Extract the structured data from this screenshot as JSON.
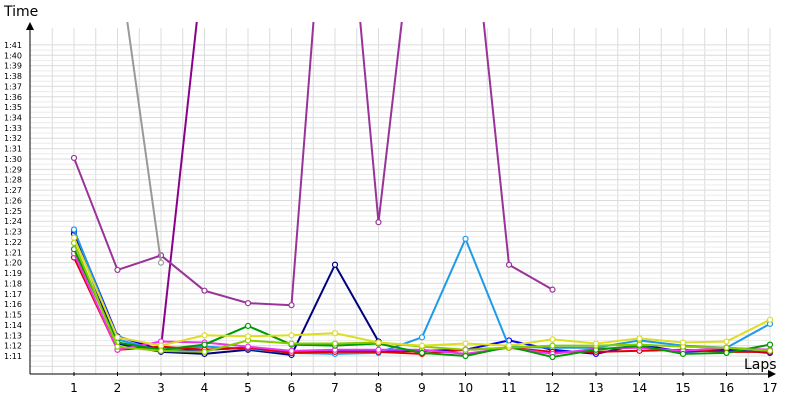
{
  "chart_data": {
    "type": "line",
    "xlabel": "Laps",
    "ylabel": "Time",
    "x": [
      1,
      2,
      3,
      4,
      5,
      6,
      7,
      8,
      9,
      10,
      11,
      12,
      13,
      14,
      15,
      16,
      17
    ],
    "y_tick_labels": [
      "1:11",
      "1:12",
      "1:13",
      "1:14",
      "1:15",
      "1:16",
      "1:17",
      "1:18",
      "1:19",
      "1:20",
      "1:21",
      "1:22",
      "1:23",
      "1:24",
      "1:25",
      "1:26",
      "1:27",
      "1:28",
      "1:29",
      "1:30",
      "1:31",
      "1:32",
      "1:33",
      "1:34",
      "1:35",
      "1:36",
      "1:37",
      "1:38",
      "1:39",
      "1:40",
      "1:41"
    ],
    "ylim": [
      70,
      101.5
    ],
    "grid": true,
    "series": [
      {
        "color": "#000080",
        "values": [
          82.8,
          72.2,
          71.4,
          71.2,
          71.6,
          71.1,
          79.8,
          72.4,
          null,
          null,
          null,
          null,
          null,
          null,
          null,
          null,
          null
        ]
      },
      {
        "color": "#8B008B",
        "values": [
          null,
          null,
          71.8,
          110,
          null,
          null,
          null,
          null,
          null,
          null,
          null,
          null,
          null,
          null,
          null,
          null,
          null
        ]
      },
      {
        "color": "#993399",
        "values": [
          90.1,
          79.3,
          80.7,
          77.3,
          76.1,
          75.9,
          130,
          83.9,
          120,
          120,
          79.8,
          77.4,
          null,
          null,
          null,
          null,
          null
        ]
      },
      {
        "color": "#999999",
        "values": [
          null,
          110,
          80,
          null,
          null,
          null,
          null,
          null,
          null,
          null,
          null,
          null,
          null,
          null,
          null,
          null,
          null
        ]
      },
      {
        "color": "#0000FF",
        "values": [
          83.1,
          72.9,
          71.6,
          71.6,
          71.8,
          71.4,
          71.5,
          71.5,
          71.5,
          71.6,
          72.5,
          71.6,
          71.2,
          72.1,
          71.4,
          71.6,
          71.3
        ]
      },
      {
        "color": "#1E9BE8",
        "values": [
          83.2,
          72.6,
          71.5,
          71.9,
          71.7,
          71.3,
          71.2,
          71.3,
          72.8,
          82.3,
          71.9,
          71.8,
          71.8,
          72.5,
          72,
          71.8,
          74.1
        ]
      },
      {
        "color": "#E00000",
        "values": [
          80.5,
          71.6,
          71.9,
          71.6,
          71.8,
          71.3,
          71.4,
          71.4,
          71.2,
          71.6,
          71.8,
          71.4,
          71.4,
          71.5,
          71.6,
          71.4,
          71.4
        ]
      },
      {
        "color": "#EE33EE",
        "values": [
          80.9,
          71.6,
          72.4,
          72.3,
          71.9,
          71.5,
          71.6,
          71.6,
          71.6,
          71.2,
          71.8,
          71.2,
          71.7,
          71.8,
          71.5,
          71.8,
          71.6
        ]
      },
      {
        "color": "#009900",
        "values": [
          81.3,
          72.3,
          71.6,
          72.1,
          73.9,
          72.1,
          72.0,
          72.2,
          71.3,
          71.0,
          71.9,
          70.9,
          71.6,
          72.0,
          71.2,
          71.3,
          72.1
        ]
      },
      {
        "color": "#88CC00",
        "values": [
          81.9,
          71.9,
          71.5,
          71.4,
          72.5,
          72.2,
          72.2,
          72.3,
          71.9,
          71.6,
          71.8,
          72.0,
          72.0,
          72.1,
          71.9,
          71.8,
          71.5
        ]
      },
      {
        "color": "#DDDD22",
        "values": [
          82.4,
          72.8,
          72.0,
          73.0,
          72.9,
          73.0,
          73.2,
          72.3,
          72.0,
          72.2,
          72.0,
          72.6,
          72.2,
          72.7,
          72.3,
          72.4,
          74.5
        ]
      }
    ]
  }
}
